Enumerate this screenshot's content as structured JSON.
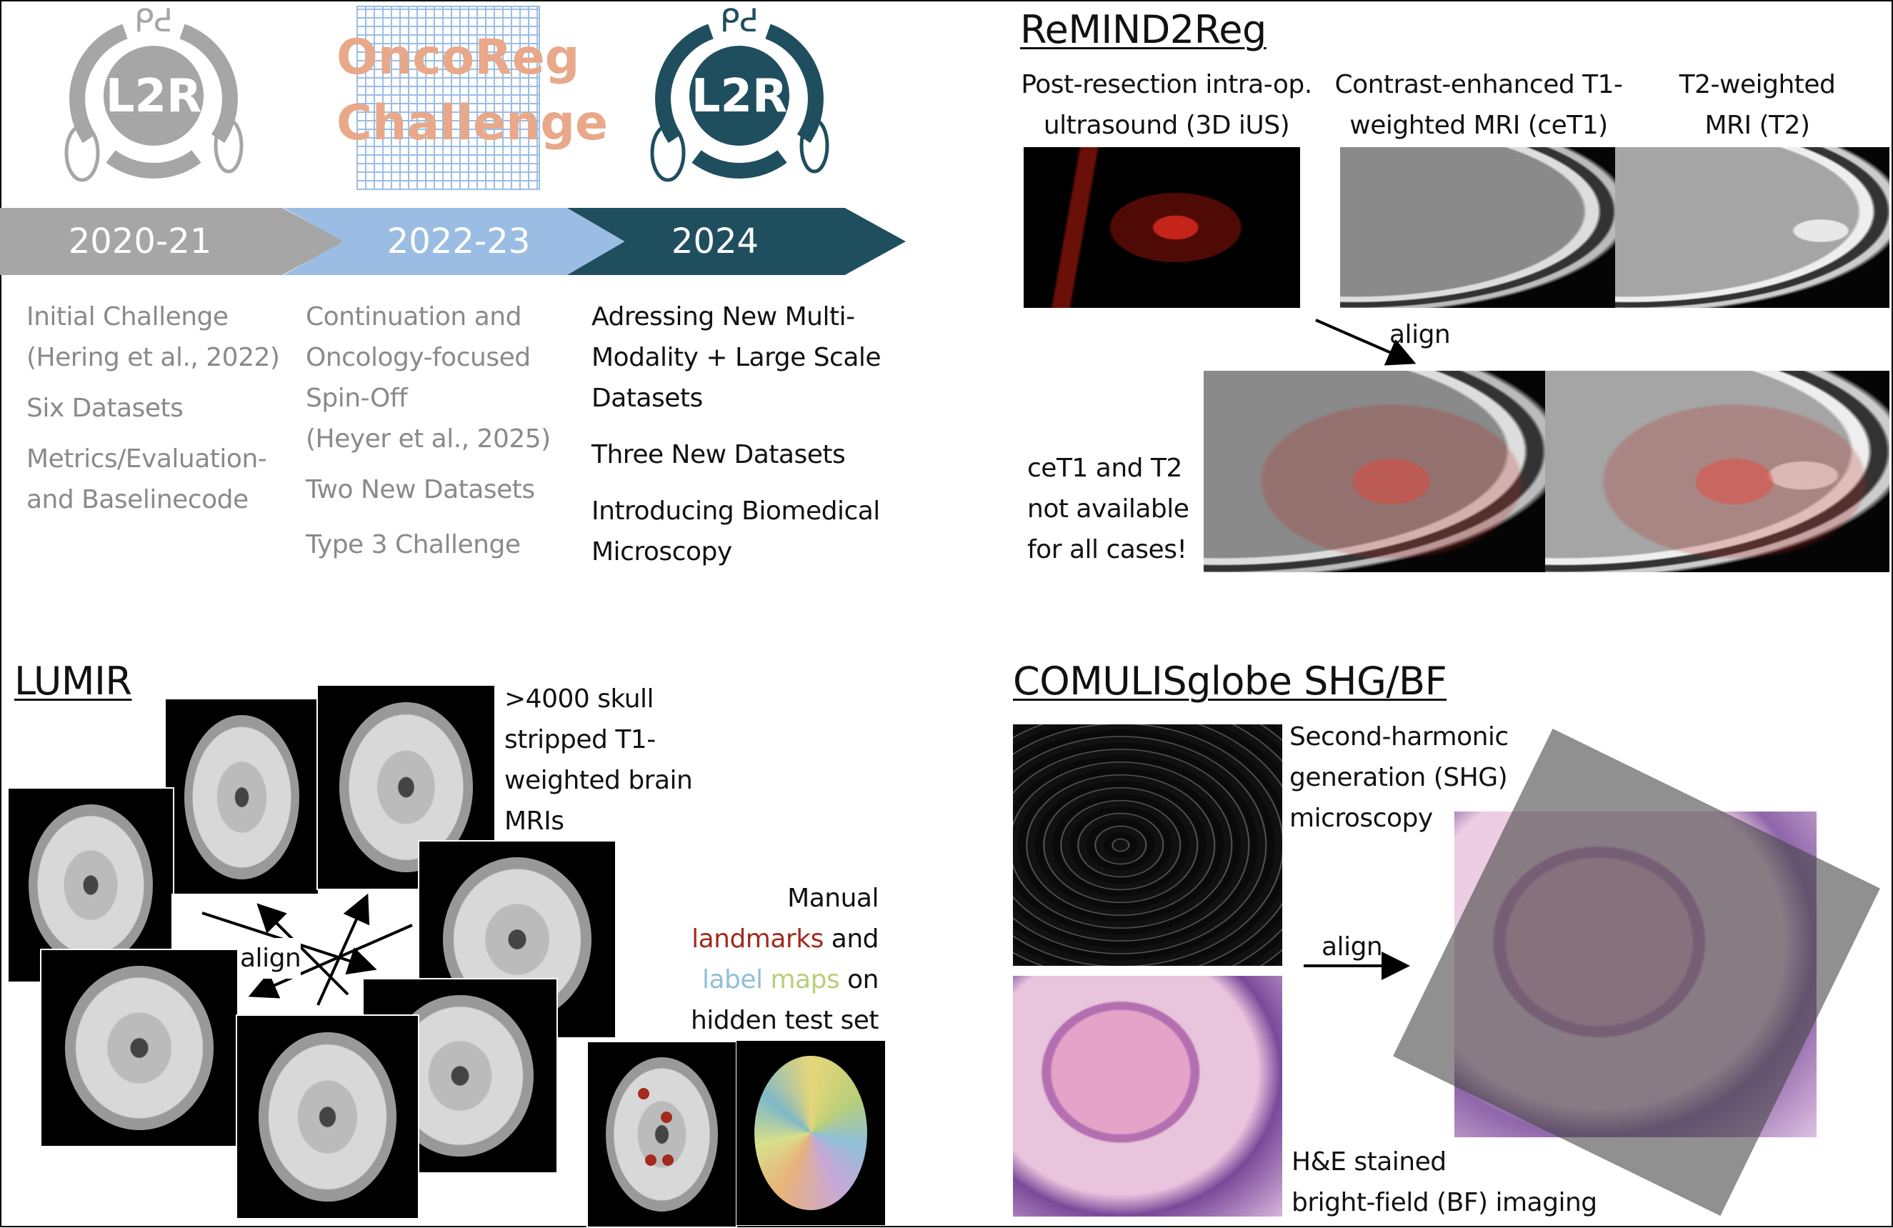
{
  "timeline": {
    "logos": [
      {
        "text": "L2R",
        "color": "#a6a6a6"
      },
      {
        "text": "OncoReg Challenge",
        "color": "#e8a889"
      },
      {
        "text": "L2R",
        "color": "#1f4e5f"
      }
    ],
    "periods": [
      {
        "label": "2020-21",
        "color": "#a6a6a6"
      },
      {
        "label": "2022-23",
        "color": "#9bbde3"
      },
      {
        "label": "2024",
        "color": "#1f4e5f"
      }
    ],
    "columns": [
      {
        "items": [
          "Initial Challenge",
          "(Hering et al., 2022)",
          "Six Datasets",
          "Metrics/Evaluation-",
          "and Baselinecode"
        ]
      },
      {
        "items": [
          "Continuation and",
          "Oncology-focused",
          "Spin-Off",
          "(Heyer et al., 2025)",
          "Two New Datasets",
          "Type 3 Challenge"
        ]
      },
      {
        "items": [
          "Adressing New Multi-",
          "Modality + Large Scale",
          "Datasets",
          "Three New Datasets",
          "Introducing Biomedical",
          "Microscopy"
        ]
      }
    ]
  },
  "remind": {
    "title": "ReMIND2Reg",
    "headers": [
      [
        "Post-resection intra-op.",
        "ultrasound (3D iUS)"
      ],
      [
        "Contrast-enhanced T1-",
        "weighted MRI (ceT1)"
      ],
      [
        "T2-weighted",
        "MRI (T2)"
      ]
    ],
    "align": "align",
    "note": [
      "ceT1 and T2",
      "not available",
      "for all cases!"
    ]
  },
  "lumir": {
    "title": "LUMIR",
    "desc": [
      ">4000 skull",
      "stripped T1-",
      "weighted brain",
      "MRIs"
    ],
    "align": "align",
    "manual": {
      "line1": "Manual",
      "landmarks": "landmarks",
      "and": " and",
      "label": "label",
      "maps": " maps",
      "on": " on",
      "line4": "hidden test set"
    },
    "colors": {
      "landmarks": "#a32a1c",
      "label": "#8fbfd8",
      "maps": "#b8cf78"
    }
  },
  "comulis": {
    "title": "COMULISglobe SHG/BF",
    "shg": [
      "Second-harmonic",
      "generation (SHG)",
      "microscopy"
    ],
    "he": [
      "H&E stained",
      "bright-field (BF) imaging"
    ],
    "align": "align"
  }
}
